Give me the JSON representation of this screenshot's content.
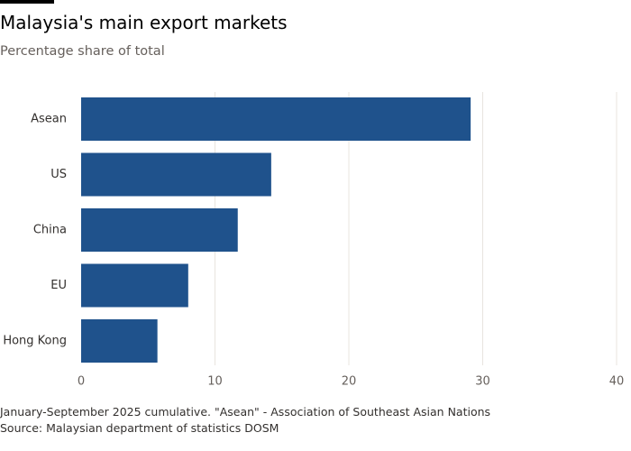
{
  "header": {
    "title": "Malaysia's main export markets",
    "subtitle": "Percentage share of total"
  },
  "footer": {
    "note": "January-September 2025 cumulative. \"Asean\" - Association of Southeast Asian Nations",
    "source": "Source: Malaysian department of statistics DOSM"
  },
  "colors": {
    "bar": "#1f528c",
    "gridline": "#e8e4df",
    "tick_label": "#66605c"
  },
  "chart_data": {
    "type": "bar",
    "orientation": "horizontal",
    "title": "Malaysia's main export markets",
    "subtitle": "Percentage share of total",
    "categories": [
      "Asean",
      "US",
      "China",
      "EU",
      "Hong Kong"
    ],
    "values": [
      29.1,
      14.2,
      11.7,
      8.0,
      5.7
    ],
    "xlim": [
      0,
      40
    ],
    "xticks": [
      0,
      10,
      20,
      30,
      40
    ],
    "grid": true,
    "legend": "none"
  }
}
